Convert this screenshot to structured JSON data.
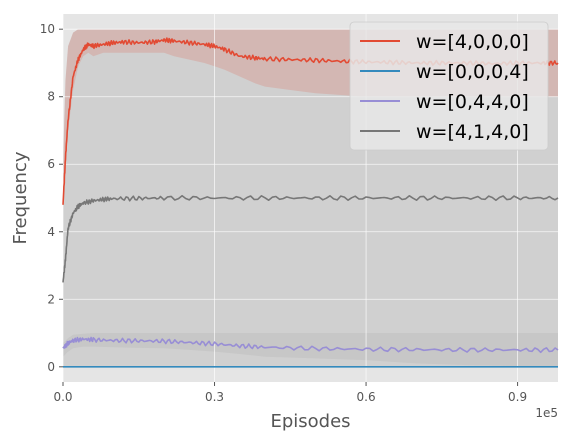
{
  "chart_data": {
    "type": "line",
    "title": "",
    "xlabel": "Episodes",
    "ylabel": "Frequency",
    "x_offset_label": "1e5",
    "xlim": [
      0,
      98000
    ],
    "ylim": [
      -0.45,
      10.45
    ],
    "x_ticks": [
      {
        "value": 0,
        "label": "0.0"
      },
      {
        "value": 30000,
        "label": "0.3"
      },
      {
        "value": 60000,
        "label": "0.6"
      },
      {
        "value": 90000,
        "label": "0.9"
      }
    ],
    "y_ticks": [
      {
        "value": 0,
        "label": "0"
      },
      {
        "value": 2,
        "label": "2"
      },
      {
        "value": 4,
        "label": "4"
      },
      {
        "value": 6,
        "label": "6"
      },
      {
        "value": 8,
        "label": "8"
      },
      {
        "value": 10,
        "label": "10"
      }
    ],
    "grid": true,
    "legend_position": "top-right",
    "colors": {
      "background": "#e5e5e5",
      "grid": "#ffffff",
      "band": "#c0c0c0"
    },
    "series": [
      {
        "name": "w=[4,0,0,0]",
        "color": "#e24a33",
        "x": [
          0,
          500,
          1000,
          2000,
          3000,
          4000,
          5000,
          6000,
          8000,
          10000,
          12000,
          15000,
          18000,
          20000,
          22000,
          25000,
          28000,
          30000,
          32000,
          35000,
          38000,
          40000,
          45000,
          50000,
          55000,
          60000,
          65000,
          70000,
          75000,
          80000,
          85000,
          90000,
          95000,
          98000
        ],
        "y": [
          4.8,
          6.2,
          7.3,
          8.6,
          9.1,
          9.4,
          9.55,
          9.5,
          9.55,
          9.6,
          9.62,
          9.6,
          9.62,
          9.68,
          9.65,
          9.6,
          9.55,
          9.5,
          9.4,
          9.2,
          9.15,
          9.12,
          9.1,
          9.08,
          9.05,
          9.03,
          9.02,
          9.0,
          9.0,
          9.0,
          8.98,
          9.0,
          9.0,
          9.0
        ],
        "band_low": [
          0,
          0,
          0,
          0,
          0,
          0,
          0,
          0,
          0,
          0,
          0,
          0,
          0,
          0,
          0,
          0,
          0,
          0,
          0,
          0,
          0,
          0,
          0,
          0,
          0,
          0,
          0,
          0,
          0,
          0,
          0,
          0,
          0,
          0
        ],
        "band_high": [
          6.0,
          8.5,
          9.5,
          9.9,
          10.0,
          10.0,
          10.0,
          10.0,
          10.0,
          10.0,
          10.0,
          10.0,
          10.0,
          10.0,
          10.0,
          10.0,
          10.0,
          10.0,
          10.0,
          10.0,
          10.0,
          10.0,
          10.0,
          10.0,
          10.0,
          10.0,
          10.0,
          10.0,
          10.0,
          10.0,
          10.0,
          10.0,
          10.0,
          10.0
        ],
        "band2_low": [
          4.8,
          6.0,
          7.0,
          8.2,
          8.9,
          9.2,
          9.3,
          9.2,
          9.3,
          9.3,
          9.3,
          9.3,
          9.3,
          9.3,
          9.2,
          9.1,
          9.0,
          8.9,
          8.8,
          8.6,
          8.4,
          8.3,
          8.2,
          8.1,
          8.05,
          8.0,
          8.0,
          8.0,
          8.0,
          8.0,
          8.0,
          8.0,
          8.0,
          8.0
        ]
      },
      {
        "name": "w=[0,0,0,4]",
        "color": "#348abd",
        "x": [
          0,
          98000
        ],
        "y": [
          0,
          0
        ]
      },
      {
        "name": "w=[0,4,4,0]",
        "color": "#988ed5",
        "x": [
          0,
          1000,
          2000,
          4000,
          6000,
          10000,
          15000,
          20000,
          25000,
          30000,
          35000,
          40000,
          50000,
          60000,
          70000,
          80000,
          90000,
          98000
        ],
        "y": [
          0.55,
          0.7,
          0.78,
          0.82,
          0.8,
          0.78,
          0.77,
          0.76,
          0.72,
          0.68,
          0.62,
          0.58,
          0.54,
          0.52,
          0.51,
          0.5,
          0.5,
          0.5
        ],
        "band_low": [
          0.3,
          0.45,
          0.55,
          0.6,
          0.6,
          0.58,
          0.56,
          0.55,
          0.5,
          0.45,
          0.38,
          0.3,
          0.25,
          0.2,
          0.1,
          0.05,
          0.02,
          0.0
        ],
        "band_high": [
          0.7,
          0.85,
          0.95,
          0.98,
          1.0,
          1.0,
          1.0,
          1.0,
          1.0,
          1.0,
          1.0,
          1.0,
          1.0,
          1.0,
          1.0,
          1.0,
          1.0,
          1.0
        ]
      },
      {
        "name": "w=[4,1,4,0]",
        "color": "#777777",
        "x": [
          0,
          500,
          1000,
          2000,
          3000,
          4000,
          6000,
          8000,
          10000,
          15000,
          20000,
          30000,
          40000,
          50000,
          60000,
          70000,
          80000,
          90000,
          98000
        ],
        "y": [
          2.5,
          3.2,
          4.1,
          4.55,
          4.75,
          4.85,
          4.92,
          4.96,
          4.98,
          4.99,
          5.0,
          5.0,
          5.0,
          5.0,
          5.0,
          5.0,
          5.0,
          5.0,
          5.0
        ]
      }
    ]
  }
}
